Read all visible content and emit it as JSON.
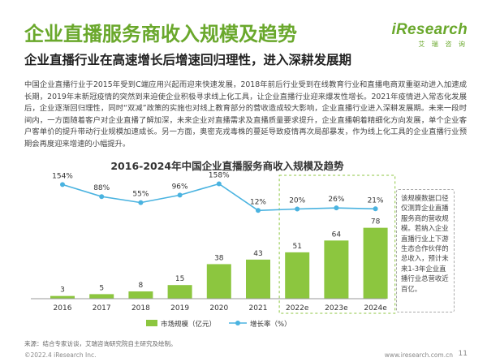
{
  "header": {
    "title": "企业直播服务商收入规模及趋势",
    "subtitle": "企业直播行业在高速增长后增速回归理性，进入深耕发展期",
    "logo_main": "iResearch",
    "logo_sub": "艾 瑞 咨 询"
  },
  "body_text": "中国企业直播行业于2015年受到C端应用兴起而迎来快速发展，2018年前后行业受到在线教育行业和直播电商双重驱动进入加速成长期，2019年末新冠疫情的突然到来迫使企业积极寻求线上化工具，让企业直播行业迎来爆发性增长。2021年疫情进入常态化发展后，企业逐渐回归理性，同时“双减”政策的实施也对线上教育部分的营收造成较大影响，企业直播行业进入深耕发展期。未来一段时间内，一方面随着客户对企业直播了解加深，未来企业对直播需求及直播质量要求提升，企业直播朝着精细化方向发展，单个企业客户客单价的提升带动行业规模加速成长。另一方面，奥密克戎毒株的蔓延导致疫情再次局部暴发，作为线上化工具的企业直播行业预期会再度迎来增速的小幅提升。",
  "note_text": "该规模数据口径仅测算企业直播服务商的营收规模。若纳入企业直播行业上下游生态合作伙伴的总收入，预计未来1-3年企业直播行业总营收近百亿。",
  "footer": {
    "source": "来源：结合专家访谈，艾瑞咨询研究院自主研究及绘制。",
    "copyright": "©2022.4 iResearch Inc.",
    "url": "www.iresearch.com.cn",
    "page": "11"
  },
  "colors": {
    "bar": "#8cc63f",
    "bar_forecast": "#8cc63f",
    "line": "#4ab3e0",
    "title_green": "#6aa82c"
  },
  "chart_data": {
    "type": "bar",
    "title": "2016-2024年中国企业直播服务商收入规模及趋势",
    "categories": [
      "2016",
      "2017",
      "2018",
      "2019",
      "2020",
      "2021",
      "2022e",
      "2023e",
      "2024e"
    ],
    "series": [
      {
        "name": "市场规模（亿元）",
        "type": "bar",
        "values": [
          3,
          5,
          8,
          15,
          38,
          43,
          51,
          64,
          78
        ]
      },
      {
        "name": "增长率（%）",
        "type": "line",
        "values": [
          154,
          88,
          55,
          96,
          158,
          12,
          20,
          26,
          21
        ],
        "labels": [
          "154%",
          "88%",
          "55%",
          "96%",
          "158%",
          "12%",
          "20%",
          "26%",
          "21%"
        ]
      }
    ],
    "forecast_categories": [
      "2022e",
      "2023e",
      "2024e"
    ],
    "legend_position": "bottom-center",
    "grid": false
  }
}
